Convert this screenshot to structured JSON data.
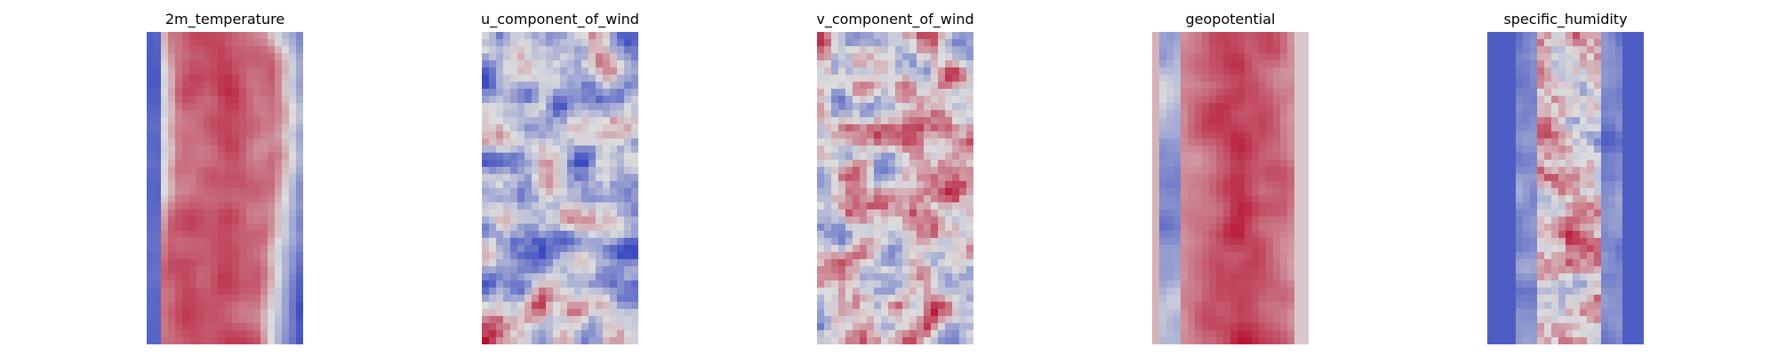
{
  "chart_data": [
    {
      "type": "heatmap",
      "title": "2m_temperature",
      "pattern": "warm-band",
      "grid": false,
      "axes": "off",
      "colormap": [
        "#3b4cc0",
        "#dddddd",
        "#b40426"
      ]
    },
    {
      "type": "heatmap",
      "title": "u_component_of_wind",
      "pattern": "turbulent-cool",
      "grid": false,
      "axes": "off",
      "colormap": [
        "#3b4cc0",
        "#dddddd",
        "#b40426"
      ]
    },
    {
      "type": "heatmap",
      "title": "v_component_of_wind",
      "pattern": "turbulent-mixed",
      "grid": false,
      "axes": "off",
      "colormap": [
        "#3b4cc0",
        "#dddddd",
        "#b40426"
      ]
    },
    {
      "type": "heatmap",
      "title": "geopotential",
      "pattern": "warm-band-smooth",
      "grid": false,
      "axes": "off",
      "colormap": [
        "#3b4cc0",
        "#dddddd",
        "#b40426"
      ]
    },
    {
      "type": "heatmap",
      "title": "specific_humidity",
      "pattern": "cool-edges-warm-core",
      "grid": false,
      "axes": "off",
      "colormap": [
        "#3b4cc0",
        "#dddddd",
        "#b40426"
      ]
    }
  ]
}
